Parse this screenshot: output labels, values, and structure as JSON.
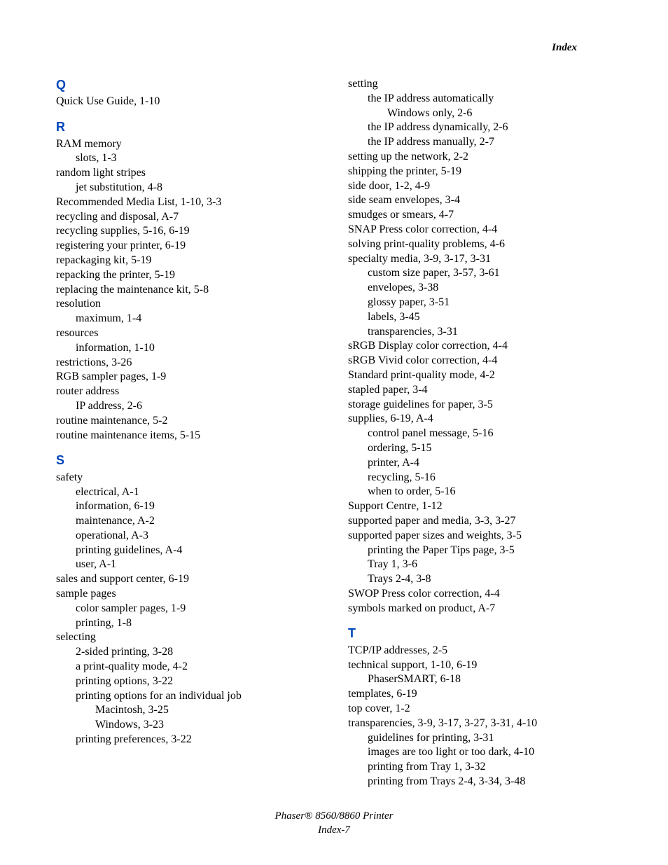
{
  "header": {
    "right": "Index"
  },
  "footer": {
    "line1": "Phaser® 8560/8860 Printer",
    "line2": "Index-7"
  },
  "letters": {
    "Q": "Q",
    "R": "R",
    "S": "S",
    "T": "T"
  },
  "left": {
    "q0": "Quick Use Guide, 1-10",
    "r0": "RAM memory",
    "r1": "slots, 1-3",
    "r2": "random light stripes",
    "r3": "jet substitution, 4-8",
    "r4": "Recommended Media List, 1-10, 3-3",
    "r5": "recycling and disposal, A-7",
    "r6": "recycling supplies, 5-16, 6-19",
    "r7": "registering your printer, 6-19",
    "r8": "repackaging kit, 5-19",
    "r9": "repacking the printer, 5-19",
    "r10": "replacing the maintenance kit, 5-8",
    "r11": "resolution",
    "r12": "maximum, 1-4",
    "r13": "resources",
    "r14": "information, 1-10",
    "r15": "restrictions, 3-26",
    "r16": "RGB sampler pages, 1-9",
    "r17": "router address",
    "r18": "IP address, 2-6",
    "r19": "routine maintenance, 5-2",
    "r20": "routine maintenance items, 5-15",
    "s0": "safety",
    "s1": "electrical, A-1",
    "s2": "information, 6-19",
    "s3": "maintenance, A-2",
    "s4": "operational, A-3",
    "s5": "printing guidelines, A-4",
    "s6": "user, A-1",
    "s7": "sales and support center, 6-19",
    "s8": "sample pages",
    "s9": "color sampler pages, 1-9",
    "s10": "printing, 1-8",
    "s11": "selecting",
    "s12": "2-sided printing, 3-28",
    "s13": "a print-quality mode, 4-2",
    "s14": "printing options, 3-22",
    "s15": "printing options for an individual job",
    "s16": "Macintosh, 3-25",
    "s17": "Windows, 3-23",
    "s18": "printing preferences, 3-22"
  },
  "right": {
    "s19": "setting",
    "s20": "the IP address automatically",
    "s21": "Windows only, 2-6",
    "s22": "the IP address dynamically, 2-6",
    "s23": "the IP address manually, 2-7",
    "s24": "setting up the network, 2-2",
    "s25": "shipping the printer, 5-19",
    "s26": "side door, 1-2, 4-9",
    "s27": "side seam envelopes, 3-4",
    "s28": "smudges or smears, 4-7",
    "s29": "SNAP Press color correction, 4-4",
    "s30": "solving print-quality problems, 4-6",
    "s31": "specialty media, 3-9, 3-17, 3-31",
    "s32": "custom size paper, 3-57, 3-61",
    "s33": "envelopes, 3-38",
    "s34": "glossy paper, 3-51",
    "s35": "labels, 3-45",
    "s36": "transparencies, 3-31",
    "s37": "sRGB Display color correction, 4-4",
    "s38": "sRGB Vivid color correction, 4-4",
    "s39": "Standard print-quality mode, 4-2",
    "s40": "stapled paper, 3-4",
    "s41": "storage guidelines for paper, 3-5",
    "s42": "supplies, 6-19, A-4",
    "s43": "control panel message, 5-16",
    "s44": "ordering, 5-15",
    "s45": "printer, A-4",
    "s46": "recycling, 5-16",
    "s47": "when to order, 5-16",
    "s48": "Support Centre, 1-12",
    "s49": "supported paper and media, 3-3, 3-27",
    "s50": "supported paper sizes and weights, 3-5",
    "s51": "printing the Paper Tips page, 3-5",
    "s52": "Tray 1, 3-6",
    "s53": "Trays 2-4, 3-8",
    "s54": "SWOP Press color correction, 4-4",
    "s55": "symbols marked on product, A-7",
    "t0": "TCP/IP addresses, 2-5",
    "t1": "technical support, 1-10, 6-19",
    "t2": "PhaserSMART, 6-18",
    "t3": "templates, 6-19",
    "t4": "top cover, 1-2",
    "t5": "transparencies, 3-9, 3-17, 3-27, 3-31, 4-10",
    "t6": "guidelines for printing, 3-31",
    "t7": "images are too light or too dark, 4-10",
    "t8": "printing from Tray 1, 3-32",
    "t9": "printing from Trays 2-4, 3-34, 3-48"
  }
}
